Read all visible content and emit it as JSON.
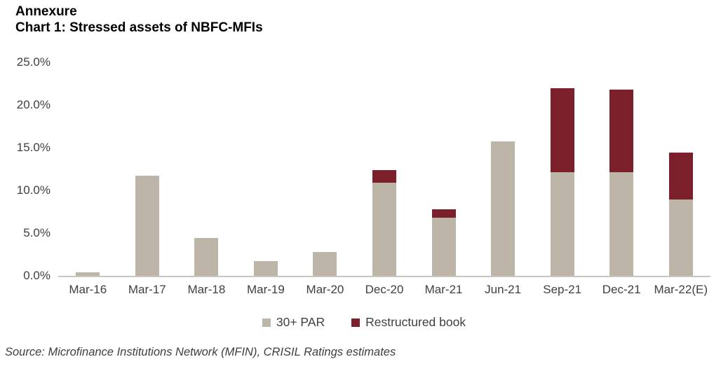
{
  "header": {
    "line1": "Annexure",
    "line2": "Chart 1: Stressed assets of NBFC-MFIs"
  },
  "chart_data": {
    "type": "bar",
    "stacked": true,
    "title": "Chart 1: Stressed assets of NBFC-MFIs",
    "xlabel": "",
    "ylabel": "",
    "ylim": [
      0,
      25
    ],
    "grid": false,
    "legend_position": "bottom",
    "categories": [
      "Mar-16",
      "Mar-17",
      "Mar-18",
      "Mar-19",
      "Mar-20",
      "Dec-20",
      "Mar-21",
      "Jun-21",
      "Sep-21",
      "Dec-21",
      "Mar-22(E)"
    ],
    "series": [
      {
        "name": "30+ PAR",
        "color": "#BDB5A7",
        "values": [
          0.4,
          11.7,
          4.4,
          1.7,
          2.8,
          10.9,
          6.8,
          15.7,
          12.1,
          12.1,
          8.9
        ]
      },
      {
        "name": "Restructured book",
        "color": "#7B1F2B",
        "values": [
          0,
          0,
          0,
          0,
          0,
          1.5,
          1.0,
          0,
          9.9,
          9.7,
          5.5
        ]
      }
    ],
    "stack_totals": [
      0.4,
      11.7,
      4.4,
      1.7,
      2.8,
      12.4,
      7.8,
      15.7,
      22.0,
      21.8,
      14.4
    ],
    "y_ticks": [
      {
        "value": 0,
        "label": "0.0%"
      },
      {
        "value": 5,
        "label": "5.0%"
      },
      {
        "value": 10,
        "label": "10.0%"
      },
      {
        "value": 15,
        "label": "15.0%"
      },
      {
        "value": 20,
        "label": "20.0%"
      },
      {
        "value": 25,
        "label": "25.0%"
      }
    ],
    "colors": {
      "axis_line": "#CAC7C3",
      "axis_text": "#404040",
      "title_text": "#000000",
      "source_text": "#3F3F3F"
    }
  },
  "source": "Source: Microfinance Institutions Network (MFIN), CRISIL Ratings estimates"
}
